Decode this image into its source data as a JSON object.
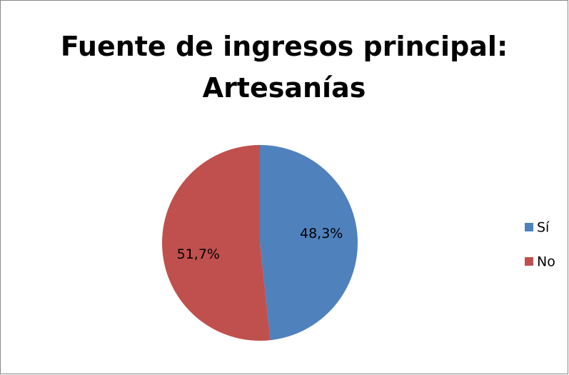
{
  "chart_data": {
    "type": "pie",
    "title": "Fuente de ingresos principal: Artesanías",
    "categories": [
      "Sí",
      "No"
    ],
    "values": [
      48.3,
      51.7
    ],
    "value_labels": [
      "48,3%",
      "51,7%"
    ],
    "colors": [
      "#4f81bd",
      "#c0504d"
    ],
    "legend": "right"
  }
}
